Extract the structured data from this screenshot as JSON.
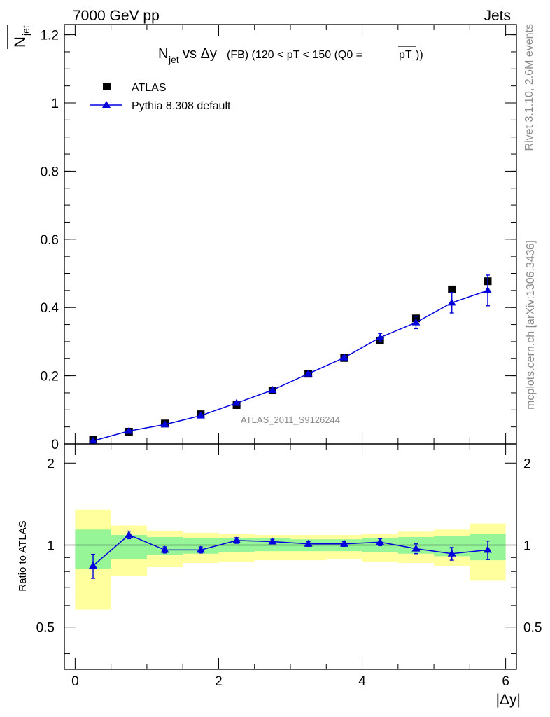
{
  "header": {
    "left": "7000 GeV pp",
    "right": "Jets"
  },
  "side": {
    "rivet": "Rivet 3.1.10,  2.6M events",
    "mcplots": "mcplots.cern.ch [arXiv:1306.3436]"
  },
  "chart_data": {
    "type": "scatter",
    "title": {
      "main": "N",
      "sub": "jet",
      "rest": " vs Δy",
      "detail": " (FB) (120 < pT < 150 (Q0 = ",
      "pt_bar": "pT",
      "close": "))"
    },
    "ylabel": {
      "main": "N",
      "sub": "jet"
    },
    "xlabel": "|Δy|",
    "watermark": "ATLAS_2011_S9126244",
    "xlim": [
      -0.15,
      6.15
    ],
    "ylim": [
      0,
      1.23
    ],
    "ratio_ylim": [
      0.35,
      2.35
    ],
    "ratio_ylabel": "Ratio to ATLAS",
    "xticks": [
      "0",
      "2",
      "4",
      "6"
    ],
    "yticks": [
      "0",
      "0.2",
      "0.4",
      "0.6",
      "0.8",
      "1",
      "1.2"
    ],
    "ratio_yticks": [
      "0.5",
      "1",
      "2"
    ],
    "x_edges": [
      0,
      0.5,
      1,
      1.5,
      2,
      2.5,
      3,
      3.5,
      4,
      4.5,
      5,
      5.5,
      6
    ],
    "series": [
      {
        "name": "ATLAS",
        "marker": "square",
        "color": "#000000",
        "x": [
          0.25,
          0.75,
          1.25,
          1.75,
          2.25,
          2.75,
          3.25,
          3.75,
          4.25,
          4.75,
          5.25,
          5.75
        ],
        "y": [
          0.012,
          0.036,
          0.06,
          0.087,
          0.114,
          0.157,
          0.206,
          0.252,
          0.303,
          0.368,
          0.453,
          0.477
        ]
      },
      {
        "name": "Pythia 8.308 default",
        "marker": "triangle",
        "color": "#0000dd",
        "x": [
          0.25,
          0.75,
          1.25,
          1.75,
          2.25,
          2.75,
          3.25,
          3.75,
          4.25,
          4.75,
          5.25,
          5.75
        ],
        "y": [
          0.009,
          0.038,
          0.057,
          0.083,
          0.12,
          0.158,
          0.206,
          0.253,
          0.312,
          0.356,
          0.414,
          0.45
        ],
        "yerr": [
          0.002,
          0.002,
          0.002,
          0.003,
          0.003,
          0.003,
          0.004,
          0.006,
          0.012,
          0.018,
          0.03,
          0.045
        ]
      }
    ],
    "ratio": {
      "x": [
        0.25,
        0.75,
        1.25,
        1.75,
        2.25,
        2.75,
        3.25,
        3.75,
        4.25,
        4.75,
        5.25,
        5.75
      ],
      "y": [
        0.84,
        1.09,
        0.96,
        0.96,
        1.04,
        1.03,
        1.01,
        1.01,
        1.025,
        0.97,
        0.93,
        0.96
      ],
      "yerr": [
        0.085,
        0.035,
        0.025,
        0.025,
        0.025,
        0.02,
        0.02,
        0.02,
        0.03,
        0.04,
        0.05,
        0.075
      ],
      "band_green": [
        [
          0.82,
          1.14
        ],
        [
          0.89,
          1.09
        ],
        [
          0.92,
          1.07
        ],
        [
          0.93,
          1.06
        ],
        [
          0.94,
          1.06
        ],
        [
          0.95,
          1.06
        ],
        [
          0.95,
          1.05
        ],
        [
          0.95,
          1.05
        ],
        [
          0.94,
          1.06
        ],
        [
          0.93,
          1.07
        ],
        [
          0.91,
          1.08
        ],
        [
          0.88,
          1.1
        ]
      ],
      "band_yellow": [
        [
          0.58,
          1.35
        ],
        [
          0.77,
          1.18
        ],
        [
          0.83,
          1.13
        ],
        [
          0.86,
          1.11
        ],
        [
          0.87,
          1.1
        ],
        [
          0.88,
          1.09
        ],
        [
          0.88,
          1.09
        ],
        [
          0.89,
          1.09
        ],
        [
          0.87,
          1.1
        ],
        [
          0.86,
          1.12
        ],
        [
          0.84,
          1.14
        ],
        [
          0.74,
          1.2
        ]
      ]
    },
    "colors": {
      "green": "#96f596",
      "yellow": "#ffff9e",
      "model": "#0000dd"
    }
  }
}
